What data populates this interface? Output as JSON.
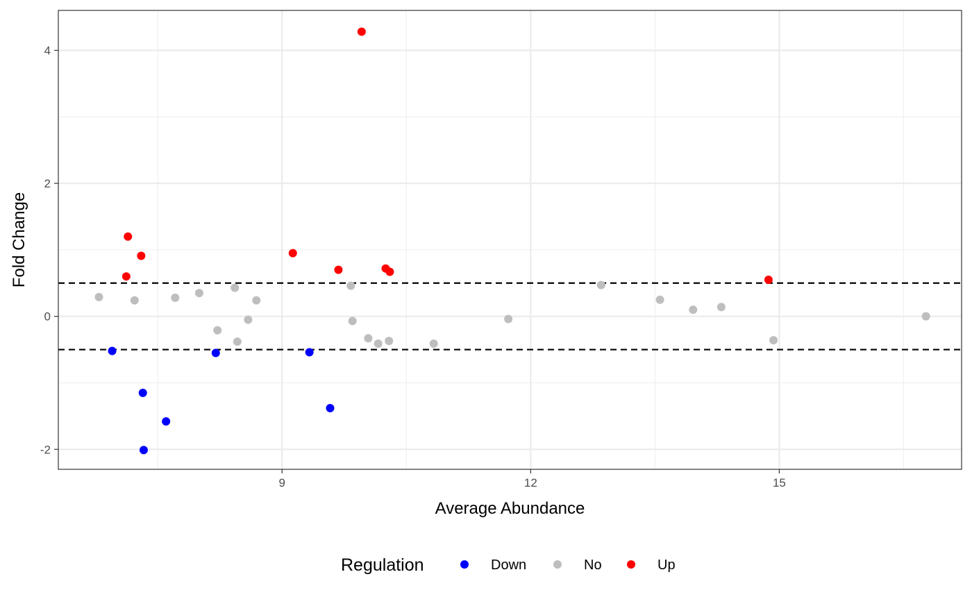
{
  "chart_data": {
    "type": "scatter",
    "xlabel": "Average Abundance",
    "ylabel": "Fold Change",
    "xlim": [
      6.3,
      17.2
    ],
    "ylim": [
      -2.3,
      4.6
    ],
    "x_ticks": [
      9,
      12,
      15
    ],
    "x_tick_labels": [
      "9",
      "12",
      "15"
    ],
    "y_ticks": [
      -2,
      0,
      2,
      4
    ],
    "y_tick_labels": [
      "-2",
      "0",
      "2",
      "4"
    ],
    "x_minor_gridlines": [
      7.5,
      10.5,
      13.5,
      16.5
    ],
    "y_minor_gridlines": [
      -1,
      1,
      3
    ],
    "grid": true,
    "reference_lines": [
      0.5,
      -0.5
    ],
    "legend": {
      "title": "Regulation",
      "position": "bottom"
    },
    "series": [
      {
        "name": "Down",
        "color": "#0000ff",
        "points": [
          {
            "x": 6.95,
            "y": -0.52
          },
          {
            "x": 7.32,
            "y": -1.15
          },
          {
            "x": 7.33,
            "y": -2.01
          },
          {
            "x": 7.6,
            "y": -1.58
          },
          {
            "x": 8.2,
            "y": -0.55
          },
          {
            "x": 9.33,
            "y": -0.54
          },
          {
            "x": 9.58,
            "y": -1.38
          }
        ]
      },
      {
        "name": "No",
        "color": "#bebebe",
        "points": [
          {
            "x": 6.79,
            "y": 0.29
          },
          {
            "x": 7.22,
            "y": 0.24
          },
          {
            "x": 7.71,
            "y": 0.28
          },
          {
            "x": 8.0,
            "y": 0.35
          },
          {
            "x": 8.43,
            "y": 0.43
          },
          {
            "x": 8.22,
            "y": -0.21
          },
          {
            "x": 8.46,
            "y": -0.38
          },
          {
            "x": 8.59,
            "y": -0.05
          },
          {
            "x": 8.69,
            "y": 0.24
          },
          {
            "x": 9.83,
            "y": 0.46
          },
          {
            "x": 9.85,
            "y": -0.07
          },
          {
            "x": 10.04,
            "y": -0.33
          },
          {
            "x": 10.16,
            "y": -0.41
          },
          {
            "x": 10.29,
            "y": -0.37
          },
          {
            "x": 10.83,
            "y": -0.41
          },
          {
            "x": 11.73,
            "y": -0.04
          },
          {
            "x": 12.85,
            "y": 0.47
          },
          {
            "x": 13.56,
            "y": 0.25
          },
          {
            "x": 13.96,
            "y": 0.1
          },
          {
            "x": 14.3,
            "y": 0.14
          },
          {
            "x": 14.93,
            "y": -0.36
          },
          {
            "x": 16.77,
            "y": 0.0
          }
        ]
      },
      {
        "name": "Up",
        "color": "#ff0000",
        "points": [
          {
            "x": 7.12,
            "y": 0.6
          },
          {
            "x": 7.14,
            "y": 1.2
          },
          {
            "x": 7.3,
            "y": 0.91
          },
          {
            "x": 9.13,
            "y": 0.95
          },
          {
            "x": 9.68,
            "y": 0.7
          },
          {
            "x": 9.96,
            "y": 4.28
          },
          {
            "x": 10.25,
            "y": 0.72
          },
          {
            "x": 10.3,
            "y": 0.67
          },
          {
            "x": 14.87,
            "y": 0.55
          }
        ]
      }
    ]
  }
}
